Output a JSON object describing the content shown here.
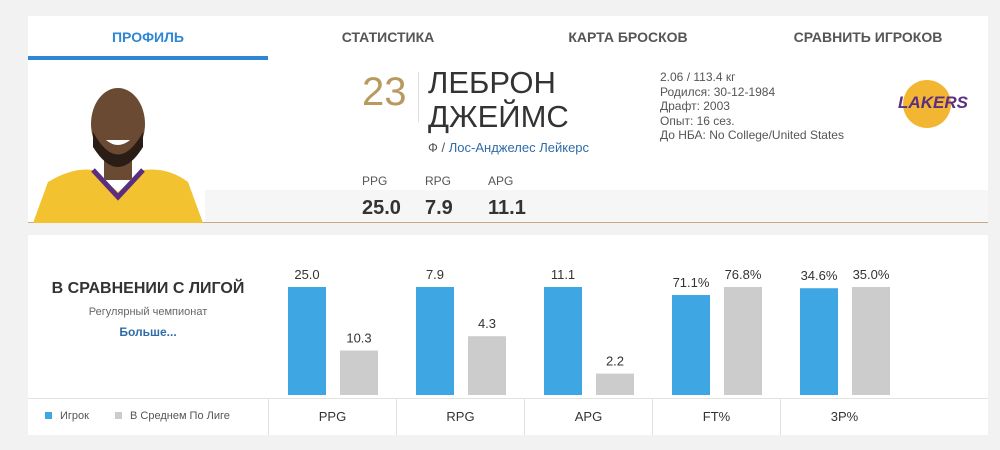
{
  "tabs": [
    "ПРОФИЛЬ",
    "СТАТИСТИКА",
    "КАРТА БРОСКОВ",
    "СРАВНИТЬ ИГРОКОВ"
  ],
  "player": {
    "number": "23",
    "first_name": "ЛЕБРОН",
    "last_name": "ДЖЕЙМС",
    "position": "Ф",
    "separator": "/",
    "team": "Лос-Анджелес Лейкерс",
    "bio": [
      "2.06 / 113.4 кг",
      "Родился: 30-12-1984",
      "Драфт: 2003",
      "Опыт: 16 сез.",
      "До НБА: No College/United States"
    ],
    "team_logo": "LAKERS"
  },
  "stats": {
    "labels": [
      "PPG",
      "RPG",
      "APG"
    ],
    "values": [
      "25.0",
      "7.9",
      "11.1"
    ]
  },
  "comparison_link": "Больше...",
  "chart_data": {
    "type": "bar",
    "title": "В СРАВНЕНИИ С ЛИГОЙ",
    "subtitle": "Регулярный чемпионат",
    "categories": [
      "PPG",
      "RPG",
      "APG",
      "FT%",
      "3P%"
    ],
    "series": [
      {
        "name": "Игрок",
        "color": "#3ea6e3",
        "values": [
          25.0,
          7.9,
          11.1,
          71.1,
          34.6
        ],
        "value_labels": [
          "25.0",
          "7.9",
          "11.1",
          "71.1%",
          "34.6%"
        ]
      },
      {
        "name": "В Среднем По Лиге",
        "color": "#cccccc",
        "values": [
          10.3,
          4.3,
          2.2,
          76.8,
          35.0
        ],
        "value_labels": [
          "10.3",
          "4.3",
          "2.2",
          "76.8%",
          "35.0%"
        ]
      }
    ]
  }
}
